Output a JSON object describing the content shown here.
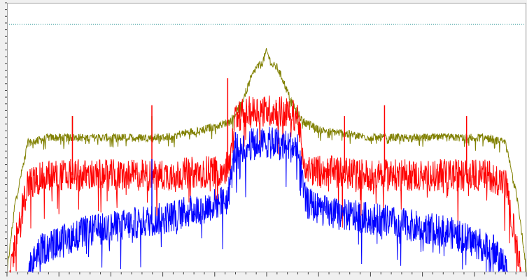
{
  "colors": {
    "frame_bg": "#f0f0f0",
    "plot_bg": "#ffffff",
    "border": "#a0a0a0",
    "tick": "#404040",
    "reference_line": "#008080"
  },
  "chart_data": {
    "type": "line",
    "title": "",
    "xlabel": "",
    "ylabel": "",
    "xlim": [
      0,
      1000
    ],
    "ylim": [
      0,
      100
    ],
    "grid": false,
    "legend": "none",
    "reference_line": {
      "y": 92,
      "style": "dotted",
      "color": "#008080"
    },
    "x_minor_ticks": 50,
    "x_major_every": 5,
    "y_ticks": 40,
    "series": [
      {
        "color": "#808000",
        "x": [
          0,
          15,
          40,
          80,
          150,
          300,
          400,
          430,
          450,
          470,
          480,
          490,
          500,
          510,
          520,
          530,
          550,
          570,
          600,
          700,
          850,
          920,
          960,
          985,
          1000
        ],
        "values": [
          0,
          25,
          48,
          50,
          50,
          50,
          54,
          56,
          62,
          72,
          76,
          77,
          82,
          77,
          76,
          72,
          62,
          56,
          53,
          50,
          50,
          50,
          48,
          25,
          0
        ],
        "noise": 1.5,
        "spikes": [
          {
            "x": 126,
            "y": 58
          },
          {
            "x": 279,
            "y": 58
          },
          {
            "x": 580,
            "y": 56
          }
        ]
      },
      {
        "color": "#ff0000",
        "x": [
          5,
          20,
          40,
          80,
          200,
          300,
          420,
          430,
          440,
          480,
          500,
          520,
          560,
          570,
          580,
          700,
          850,
          930,
          960,
          990
        ],
        "values": [
          0,
          15,
          33,
          36,
          36,
          36,
          38,
          42,
          58,
          60,
          60,
          60,
          58,
          42,
          38,
          36,
          36,
          36,
          33,
          0
        ],
        "noise": 6,
        "spikes": [
          {
            "x": 126,
            "y": 58
          },
          {
            "x": 279,
            "y": 62
          },
          {
            "x": 425,
            "y": 72
          },
          {
            "x": 650,
            "y": 58
          },
          {
            "x": 727,
            "y": 62
          },
          {
            "x": 885,
            "y": 58
          }
        ]
      },
      {
        "color": "#0000ff",
        "x": [
          40,
          60,
          150,
          300,
          380,
          425,
          430,
          440,
          480,
          500,
          520,
          560,
          570,
          575,
          620,
          700,
          850,
          940,
          965
        ],
        "values": [
          0,
          8,
          15,
          20,
          24,
          27,
          33,
          46,
          48,
          48,
          48,
          46,
          33,
          26,
          22,
          20,
          15,
          8,
          0
        ],
        "noise": 6,
        "spikes": [
          {
            "x": 279,
            "y": 42
          },
          {
            "x": 440,
            "y": 52
          }
        ]
      }
    ]
  }
}
